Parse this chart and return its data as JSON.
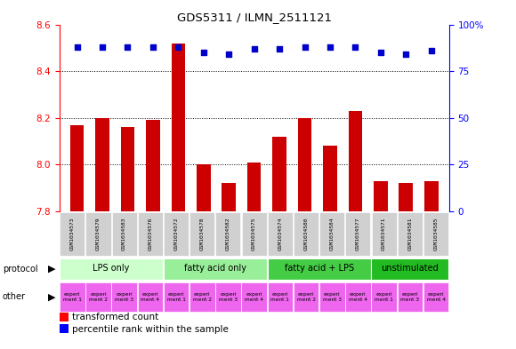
{
  "title": "GDS5311 / ILMN_2511121",
  "samples": [
    "GSM1034573",
    "GSM1034579",
    "GSM1034583",
    "GSM1034576",
    "GSM1034572",
    "GSM1034578",
    "GSM1034582",
    "GSM1034575",
    "GSM1034574",
    "GSM1034580",
    "GSM1034584",
    "GSM1034577",
    "GSM1034571",
    "GSM1034581",
    "GSM1034585"
  ],
  "transformed_counts": [
    8.17,
    8.2,
    8.16,
    8.19,
    8.52,
    8.0,
    7.92,
    8.01,
    8.12,
    8.2,
    8.08,
    8.23,
    7.93,
    7.92,
    7.93
  ],
  "percentile_ranks": [
    88,
    88,
    88,
    88,
    88,
    85,
    84,
    87,
    87,
    88,
    88,
    88,
    85,
    84,
    86
  ],
  "ylim_left": [
    7.8,
    8.6
  ],
  "ylim_right": [
    0,
    100
  ],
  "yticks_left": [
    7.8,
    8.0,
    8.2,
    8.4,
    8.6
  ],
  "yticks_right": [
    0,
    25,
    50,
    75,
    100
  ],
  "bar_color": "#cc0000",
  "dot_color": "#0000cc",
  "bar_width": 0.55,
  "protocols": [
    {
      "label": "LPS only",
      "start": 0,
      "end": 4,
      "color": "#ccffcc"
    },
    {
      "label": "fatty acid only",
      "start": 4,
      "end": 8,
      "color": "#99ee99"
    },
    {
      "label": "fatty acid + LPS",
      "start": 8,
      "end": 12,
      "color": "#44cc44"
    },
    {
      "label": "unstimulated",
      "start": 12,
      "end": 15,
      "color": "#22bb22"
    }
  ],
  "other_labels": [
    "experi\nment 1",
    "experi\nment 2",
    "experi\nment 3",
    "experi\nment 4",
    "experi\nment 1",
    "experi\nment 2",
    "experi\nment 3",
    "experi\nment 4",
    "experi\nment 1",
    "experi\nment 2",
    "experi\nment 3",
    "experi\nment 4",
    "experi\nment 1",
    "experi\nment 3",
    "experi\nment 4"
  ],
  "other_colors": [
    "#ee66ee",
    "#ee66ee",
    "#ee66ee",
    "#ee66ee",
    "#ee66ee",
    "#ee66ee",
    "#ee66ee",
    "#ee66ee",
    "#ee66ee",
    "#ee66ee",
    "#ee66ee",
    "#ee66ee",
    "#ee66ee",
    "#ee66ee",
    "#ee66ee"
  ],
  "cell_bg": "#d0d0d0",
  "legend_red": "transformed count",
  "legend_blue": "percentile rank within the sample"
}
